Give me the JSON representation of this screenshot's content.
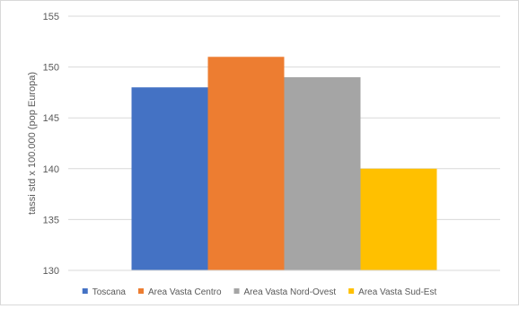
{
  "chart_data": {
    "type": "bar",
    "title": "",
    "xlabel": "",
    "ylabel": "tassi std x 100.000 (pop Europa)",
    "ylim": [
      130,
      155
    ],
    "yticks": [
      130,
      135,
      140,
      145,
      150,
      155
    ],
    "grid": true,
    "legend_position": "bottom",
    "series": [
      {
        "name": "Toscana",
        "value": 148,
        "color": "#4472C4"
      },
      {
        "name": "Area Vasta Centro",
        "value": 151,
        "color": "#ED7D31"
      },
      {
        "name": "Area Vasta Nord-Ovest",
        "value": 149,
        "color": "#A5A5A5"
      },
      {
        "name": "Area Vasta Sud-Est",
        "value": 140,
        "color": "#FFC000"
      }
    ]
  }
}
